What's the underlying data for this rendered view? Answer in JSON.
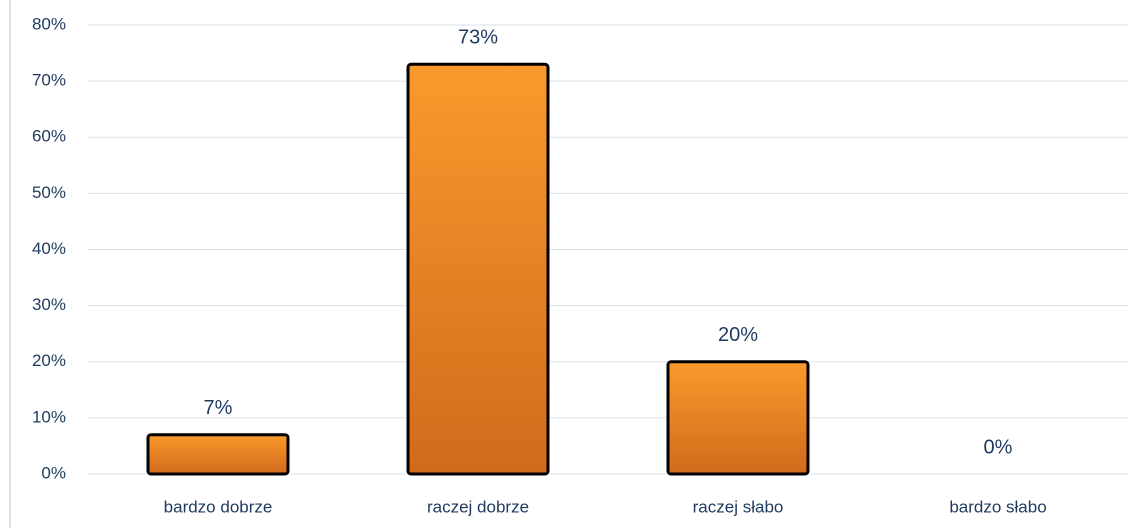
{
  "chart_data": {
    "type": "bar",
    "categories": [
      "bardzo dobrze",
      "raczej dobrze",
      "raczej słabo",
      "bardzo słabo"
    ],
    "values": [
      7,
      73,
      20,
      0
    ],
    "value_labels": [
      "7%",
      "73%",
      "20%",
      "0%"
    ],
    "color": "#f7931e",
    "ylim": [
      0,
      80
    ],
    "yticks": [
      {
        "value": 0,
        "label": "0%"
      },
      {
        "value": 10,
        "label": "10%"
      },
      {
        "value": 20,
        "label": "20%"
      },
      {
        "value": 30,
        "label": "30%"
      },
      {
        "value": 40,
        "label": "40%"
      },
      {
        "value": 50,
        "label": "50%"
      },
      {
        "value": 60,
        "label": "60%"
      },
      {
        "value": 70,
        "label": "70%"
      },
      {
        "value": 80,
        "label": "80%"
      }
    ],
    "grid": true
  }
}
